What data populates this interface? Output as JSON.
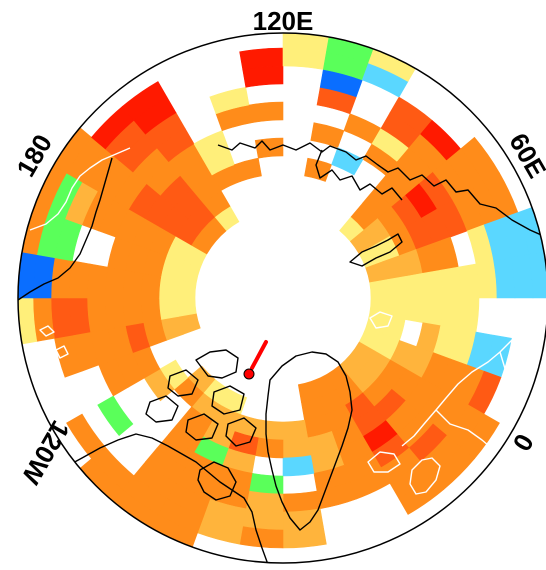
{
  "map": {
    "projection": "north-polar-stereographic",
    "longitude_labels": [
      {
        "text": "120E",
        "lon": 120
      },
      {
        "text": "60E",
        "lon": 60
      },
      {
        "text": "0",
        "lon": 0
      },
      {
        "text": "120W",
        "lon": -120
      },
      {
        "text": "180",
        "lon": 180
      }
    ],
    "colors": {
      "red": "#ff1a00",
      "orange_red": "#ff5a14",
      "orange": "#ff8c1a",
      "light_orange": "#ffb43c",
      "yellow": "#ffef7a",
      "green": "#5aff5a",
      "cyan": "#5ad7ff",
      "blue": "#0a6eff",
      "land_outline": "#000000",
      "coast_on_color": "#ffffff",
      "pole_marker": "#ff0000"
    },
    "pole_marker_icon": "marker-icon"
  }
}
